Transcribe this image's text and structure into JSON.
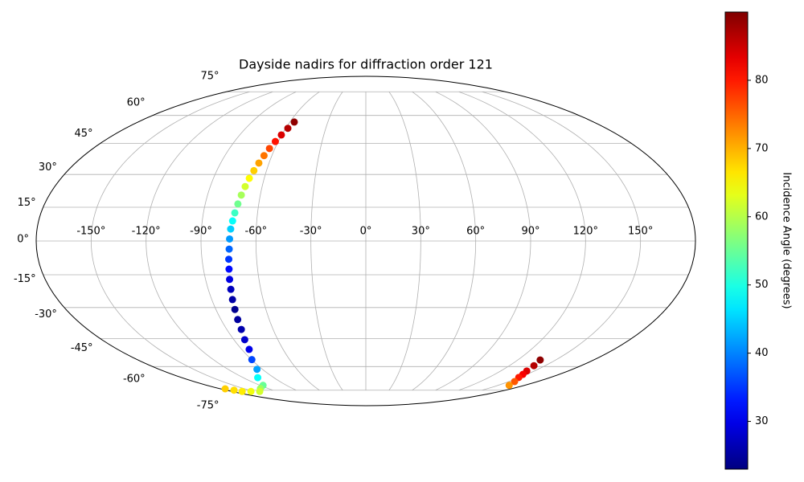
{
  "chart_data": {
    "type": "scatter",
    "projection": "mollweide",
    "title": "Dayside nadirs for diffraction order 121",
    "grid": true,
    "colormap": "jet",
    "xlim": [
      -180,
      180
    ],
    "ylim": [
      -90,
      90
    ],
    "xticks": [
      {
        "value": -150,
        "label": "-150°"
      },
      {
        "value": -120,
        "label": "-120°"
      },
      {
        "value": -90,
        "label": "-90°"
      },
      {
        "value": -60,
        "label": "-60°"
      },
      {
        "value": -30,
        "label": "-30°"
      },
      {
        "value": 0,
        "label": "0°"
      },
      {
        "value": 30,
        "label": "30°"
      },
      {
        "value": 60,
        "label": "60°"
      },
      {
        "value": 90,
        "label": "90°"
      },
      {
        "value": 120,
        "label": "120°"
      },
      {
        "value": 150,
        "label": "150°"
      }
    ],
    "yticks": [
      {
        "value": -75,
        "label": "-75°"
      },
      {
        "value": -60,
        "label": "-60°"
      },
      {
        "value": -45,
        "label": "-45°"
      },
      {
        "value": -30,
        "label": "-30°"
      },
      {
        "value": -15,
        "label": "-15°"
      },
      {
        "value": 0,
        "label": "0°"
      },
      {
        "value": 15,
        "label": "15°"
      },
      {
        "value": 30,
        "label": "30°"
      },
      {
        "value": 45,
        "label": "45°"
      },
      {
        "value": 60,
        "label": "60°"
      },
      {
        "value": 75,
        "label": "75°"
      }
    ],
    "x": [
      -56.5,
      -58.4,
      -60.3,
      -62.0,
      -63.6,
      -65.0,
      -66.3,
      -67.6,
      -68.8,
      -69.8,
      -70.8,
      -71.7,
      -72.6,
      -73.3,
      -74.0,
      -74.4,
      -74.7,
      -75.3,
      -75.8,
      -76.5,
      -77.1,
      -77.9,
      -78.6,
      -79.6,
      -80.6,
      -82.6,
      -84.6,
      -89.7,
      -94.8,
      -105.7,
      -116.6,
      -129.5,
      -142.4,
      -154.2,
      -166.0,
      -170.1,
      -174.2,
      137.7,
      140.5,
      143.2,
      146.2,
      149.2,
      155.9,
      162.6
    ],
    "y": [
      56.3,
      52.9,
      49.4,
      46.0,
      42.5,
      39.0,
      35.4,
      31.8,
      28.2,
      24.4,
      20.5,
      16.5,
      12.5,
      8.9,
      5.3,
      0.9,
      -3.6,
      -8.1,
      -12.5,
      -17.1,
      -21.6,
      -26.3,
      -30.9,
      -35.7,
      -40.5,
      -45.6,
      -50.6,
      -56.1,
      -61.6,
      -66.6,
      -71.6,
      -73.8,
      -75.9,
      -75.9,
      -75.9,
      -75.0,
      -74.0,
      -56.3,
      -59.5,
      -62.6,
      -64.6,
      -66.5,
      -69.1,
      -71.6
    ],
    "values": [
      89,
      86.5,
      84,
      80.5,
      77,
      74,
      71,
      68,
      65,
      62,
      59,
      55.5,
      52,
      48.5,
      45,
      41.5,
      38,
      35,
      32,
      29.5,
      27,
      25.5,
      24,
      25,
      26,
      28,
      30,
      36,
      42,
      48.5,
      55,
      58.5,
      62,
      64,
      66,
      67,
      68,
      89,
      86.5,
      84,
      82,
      80,
      76,
      72
    ],
    "colorbar": {
      "label": "Incidence Angle (degrees)",
      "lim": [
        23,
        90
      ],
      "ticks": [
        30,
        40,
        50,
        60,
        70,
        80
      ]
    }
  }
}
